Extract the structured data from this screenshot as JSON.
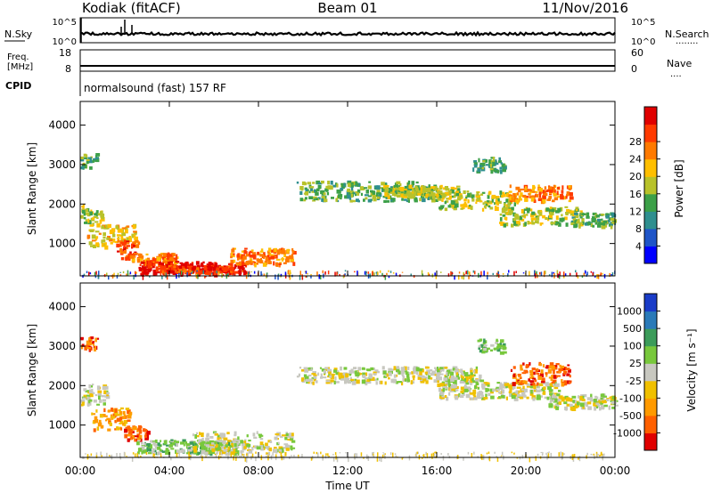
{
  "header": {
    "title": "Kodiak (fitACF)",
    "beam": "Beam 01",
    "date": "11/Nov/2016"
  },
  "top_panels": {
    "nsky": {
      "label": "N.Sky",
      "ticks_left": [
        "10^5",
        "10^0"
      ],
      "ticks_right": [
        "10^5",
        "10^0"
      ],
      "right_label": "N.Search",
      "right_dots": "........"
    },
    "freq": {
      "label_line1": "Freq.",
      "label_line2": "[MHz]",
      "ticks_left": [
        "18",
        "8"
      ],
      "ticks_right": [
        "60",
        "0"
      ],
      "right_label": "Nave",
      "right_dots": "...."
    },
    "cpid": {
      "label": "CPID",
      "text": "normalsound (fast) 157 RF"
    }
  },
  "chart_data": [
    {
      "type": "heatmap",
      "name": "power",
      "ylabel": "Slant Range [km]",
      "xlabel": "Time UT",
      "xlim_hours": [
        0,
        24
      ],
      "ylim": [
        180,
        4600
      ],
      "y_ticks": [
        1000,
        2000,
        3000,
        4000
      ],
      "colorbar": {
        "label": "Power [dB]",
        "ticks": [
          "4",
          "8",
          "12",
          "16",
          "20",
          "24",
          "28"
        ],
        "colors": [
          "#0000ff",
          "#1f55c8",
          "#2f8f8f",
          "#3ca048",
          "#b8c22a",
          "#ffbf00",
          "#ff7a00",
          "#ff3a00",
          "#e00000"
        ]
      },
      "bands": [
        {
          "t": [
            0.0,
            1.0
          ],
          "r": [
            1500,
            2000
          ],
          "c": 4
        },
        {
          "t": [
            0.3,
            2.5
          ],
          "r": [
            950,
            1500
          ],
          "c": 5
        },
        {
          "t": [
            1.6,
            2.6
          ],
          "r": [
            650,
            1100
          ],
          "c": 7
        },
        {
          "t": [
            2.2,
            4.3
          ],
          "r": [
            480,
            780
          ],
          "c": 6
        },
        {
          "t": [
            2.6,
            7.4
          ],
          "r": [
            250,
            560
          ],
          "c": 8
        },
        {
          "t": [
            3.5,
            6.8
          ],
          "r": [
            300,
            460
          ],
          "c": 7
        },
        {
          "t": [
            6.6,
            9.6
          ],
          "r": [
            500,
            900
          ],
          "c": 6
        },
        {
          "t": [
            9.7,
            16.0
          ],
          "r": [
            2100,
            2600
          ],
          "c": 3
        },
        {
          "t": [
            13.5,
            17.0
          ],
          "r": [
            2200,
            2500
          ],
          "c": 4
        },
        {
          "t": [
            16.0,
            19.5
          ],
          "r": [
            1900,
            2350
          ],
          "c": 4
        },
        {
          "t": [
            18.8,
            22.5
          ],
          "r": [
            1500,
            1950
          ],
          "c": 4
        },
        {
          "t": [
            19.2,
            22.0
          ],
          "r": [
            2100,
            2500
          ],
          "c": 6
        },
        {
          "t": [
            22.0,
            24.0
          ],
          "r": [
            1450,
            1800
          ],
          "c": 3
        },
        {
          "t": [
            0.0,
            0.7
          ],
          "r": [
            2950,
            3300
          ],
          "c": 3
        },
        {
          "t": [
            17.6,
            19.0
          ],
          "r": [
            2850,
            3200
          ],
          "c": 3
        }
      ]
    },
    {
      "type": "heatmap",
      "name": "velocity",
      "ylabel": "Slant Range [km]",
      "xlabel": "Time UT",
      "xlim_hours": [
        0,
        24
      ],
      "ylim": [
        180,
        4600
      ],
      "y_ticks": [
        1000,
        2000,
        3000,
        4000
      ],
      "colorbar": {
        "label": "Velocity [m s⁻¹]",
        "ticks": [
          "1000",
          "500",
          "100",
          "25",
          "-25",
          "-100",
          "-500",
          "-1000"
        ],
        "colors": [
          "#1a3cc8",
          "#2a7ab8",
          "#3c9c5a",
          "#78c83c",
          "#c8c8c0",
          "#f0c000",
          "#ff9a00",
          "#ff6000",
          "#e00000"
        ]
      },
      "bands": [
        {
          "t": [
            0.0,
            1.2
          ],
          "r": [
            1500,
            2050
          ],
          "c": 4
        },
        {
          "t": [
            0.4,
            2.2
          ],
          "r": [
            900,
            1450
          ],
          "c": 6
        },
        {
          "t": [
            1.8,
            3.0
          ],
          "r": [
            650,
            1000
          ],
          "c": 7
        },
        {
          "t": [
            2.5,
            7.0
          ],
          "r": [
            300,
            650
          ],
          "c": 3
        },
        {
          "t": [
            5.0,
            9.5
          ],
          "r": [
            300,
            850
          ],
          "c": 4
        },
        {
          "t": [
            9.7,
            18.0
          ],
          "r": [
            2100,
            2500
          ],
          "c": 4
        },
        {
          "t": [
            16.0,
            21.5
          ],
          "r": [
            1700,
            2100
          ],
          "c": 4
        },
        {
          "t": [
            19.3,
            22.0
          ],
          "r": [
            2050,
            2600
          ],
          "c": 7
        },
        {
          "t": [
            21.0,
            24.0
          ],
          "r": [
            1450,
            1800
          ],
          "c": 4
        },
        {
          "t": [
            0.0,
            0.7
          ],
          "r": [
            2950,
            3300
          ],
          "c": 7
        },
        {
          "t": [
            17.8,
            19.0
          ],
          "r": [
            2850,
            3200
          ],
          "c": 3
        }
      ]
    }
  ],
  "x_axis": {
    "label": "Time UT",
    "ticks": [
      "00:00",
      "04:00",
      "08:00",
      "12:00",
      "16:00",
      "20:00",
      "00:00"
    ]
  }
}
